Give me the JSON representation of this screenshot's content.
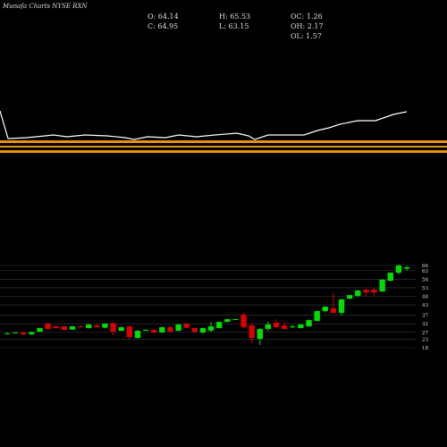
{
  "chart_data": {
    "type": "candlestick",
    "title": "Munafa Charts NYSE RXN",
    "info": [
      "O: 64.14",
      "H: 65.53",
      "OC: 1.26",
      "C: 64.95",
      "L: 63.15",
      "OH: 2.17",
      "OL: 1.57"
    ],
    "up_color": "#00dd00",
    "down_color": "#dd0000",
    "ylim": [
      18,
      66
    ],
    "yticks": [
      18,
      23,
      27,
      32,
      37,
      43,
      48,
      53,
      58,
      63,
      66
    ],
    "grid": true,
    "open": [
      26.4,
      26.9,
      26.9,
      25.8,
      27.4,
      32.1,
      30.5,
      30.5,
      28.6,
      30.5,
      29.5,
      31.0,
      29.7,
      32.4,
      27.9,
      30.5,
      23.7,
      28.4,
      28.4,
      26.9,
      30.0,
      27.9,
      32.1,
      29.5,
      26.9,
      28.0,
      29.5,
      33.1,
      34.5,
      37.3,
      31.0,
      23.2,
      29.0,
      32.6,
      31.0,
      30.5,
      29.5,
      30.5,
      33.7,
      39.4,
      41.0,
      38.4,
      46.7,
      48.3,
      51.9,
      51.9,
      50.9,
      57.1,
      61.8,
      64.14
    ],
    "high": [
      26.9,
      27.2,
      27.1,
      27.4,
      29.7,
      32.6,
      31.0,
      31.0,
      30.8,
      31.0,
      31.8,
      31.6,
      32.3,
      32.6,
      30.3,
      31.0,
      28.2,
      28.9,
      28.8,
      30.2,
      30.5,
      31.8,
      32.4,
      29.9,
      29.7,
      33.2,
      33.3,
      35.0,
      35.2,
      38.4,
      32.3,
      29.4,
      33.2,
      34.7,
      32.9,
      31.2,
      31.8,
      34.5,
      39.6,
      42.3,
      50.3,
      46.7,
      48.8,
      51.9,
      52.5,
      52.9,
      57.9,
      62.0,
      66.7,
      65.53
    ],
    "low": [
      26.0,
      26.6,
      25.3,
      25.5,
      27.2,
      28.8,
      29.2,
      27.9,
      28.4,
      29.8,
      29.2,
      29.7,
      29.5,
      25.3,
      27.7,
      23.2,
      23.5,
      27.9,
      26.4,
      26.7,
      27.2,
      27.7,
      29.5,
      26.4,
      26.0,
      27.2,
      29.2,
      32.8,
      34.2,
      29.5,
      20.6,
      19.6,
      27.6,
      29.7,
      28.8,
      29.5,
      29.2,
      30.2,
      33.4,
      38.6,
      37.8,
      37.0,
      45.9,
      47.5,
      48.0,
      48.3,
      50.6,
      56.8,
      60.8,
      63.15
    ],
    "close": [
      26.4,
      26.9,
      25.8,
      27.2,
      29.5,
      29.0,
      29.5,
      28.4,
      30.5,
      30.0,
      31.6,
      30.0,
      32.1,
      27.4,
      30.0,
      24.3,
      27.9,
      28.4,
      26.9,
      30.0,
      27.4,
      31.6,
      29.7,
      27.4,
      29.5,
      30.5,
      33.1,
      34.7,
      34.7,
      30.0,
      23.7,
      29.0,
      31.6,
      30.0,
      29.0,
      30.5,
      31.6,
      34.2,
      39.4,
      42.0,
      38.4,
      46.2,
      48.8,
      51.4,
      50.3,
      50.3,
      57.7,
      61.8,
      66.0,
      64.95
    ]
  }
}
